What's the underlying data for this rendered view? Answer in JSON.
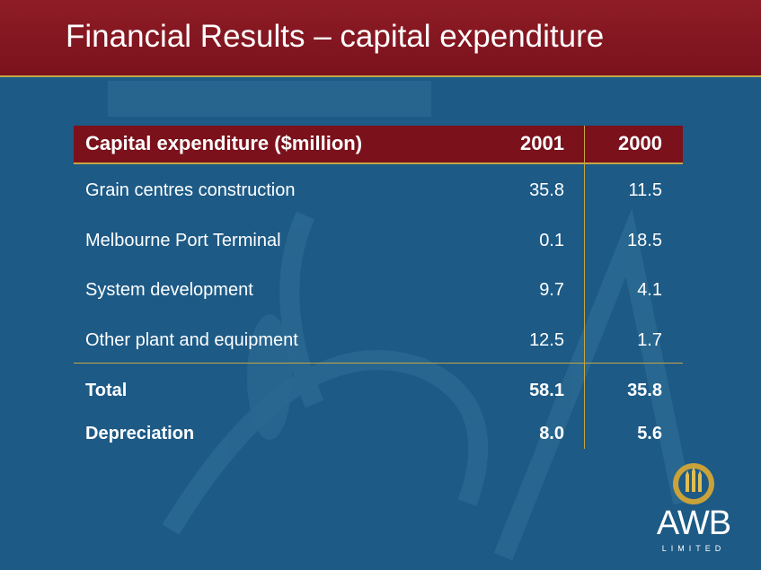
{
  "slide": {
    "title": "Financial Results – capital expenditure"
  },
  "table": {
    "header": {
      "label": "Capital expenditure ($million)",
      "col_2001": "2001",
      "col_2000": "2000"
    },
    "rows": [
      {
        "label": "Grain centres construction",
        "y2001": "35.8",
        "y2000": "11.5"
      },
      {
        "label": "Melbourne Port Terminal",
        "y2001": "0.1",
        "y2000": "18.5"
      },
      {
        "label": "System development",
        "y2001": "9.7",
        "y2000": "4.1"
      },
      {
        "label": "Other plant and equipment",
        "y2001": "12.5",
        "y2000": "1.7"
      }
    ],
    "total": {
      "label": "Total",
      "y2001": "58.1",
      "y2000": "35.8"
    },
    "depreciation": {
      "label": "Depreciation",
      "y2001": "8.0",
      "y2000": "5.6"
    }
  },
  "logo": {
    "name": "AWB",
    "subtitle": "LIMITED"
  },
  "colors": {
    "background": "#1d5a86",
    "header": "#7a121c",
    "accent_gold": "#c4a646",
    "text": "#ffffff"
  }
}
